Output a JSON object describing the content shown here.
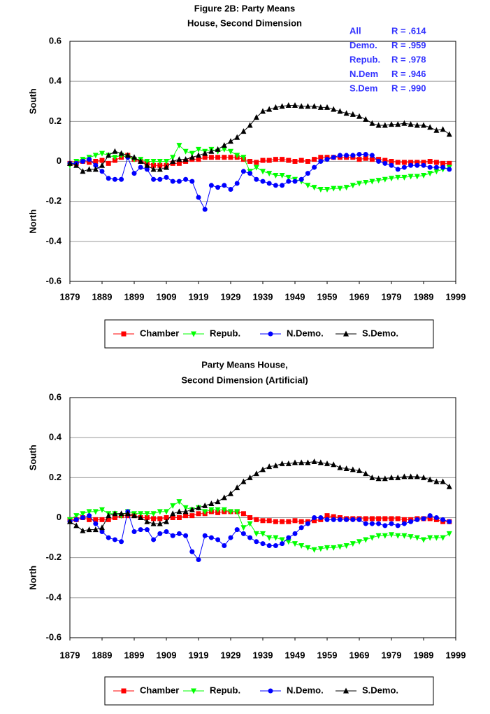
{
  "charts": [
    {
      "chart_data": {
        "type": "line",
        "title": [
          "Figure 2B:  Party Means",
          "House, Second Dimension"
        ],
        "ylabel_top": "South",
        "ylabel_bottom": "North",
        "annotations": [
          {
            "name": "All",
            "text": "R = .614"
          },
          {
            "name": "Demo.",
            "text": "R = .959"
          },
          {
            "name": "Repub.",
            "text": "R = .978"
          },
          {
            "name": "N.Dem",
            "text": "R = .946"
          },
          {
            "name": "S.Dem",
            "text": "R = .990"
          }
        ],
        "annotation_color": "#3333ff",
        "xlim": [
          1879,
          1999
        ],
        "xticks": [
          1879,
          1889,
          1899,
          1909,
          1919,
          1929,
          1939,
          1949,
          1959,
          1969,
          1979,
          1989,
          1999
        ],
        "ylim": [
          -0.6,
          0.6
        ],
        "yticks": [
          {
            "value": -0.6,
            "label": "-0.6"
          },
          {
            "value": -0.4,
            "label": "-0.4"
          },
          {
            "value": -0.2,
            "label": "-0.2"
          },
          0,
          {
            "value": 0.2,
            "label": "0.2"
          },
          {
            "value": 0.4,
            "label": "0.4"
          },
          {
            "value": 0.6,
            "label": "0.6"
          }
        ],
        "grid": true,
        "x": [
          1879,
          1881,
          1883,
          1885,
          1887,
          1889,
          1891,
          1893,
          1895,
          1897,
          1899,
          1901,
          1903,
          1905,
          1907,
          1909,
          1911,
          1913,
          1915,
          1917,
          1919,
          1921,
          1923,
          1925,
          1927,
          1929,
          1931,
          1933,
          1935,
          1937,
          1939,
          1941,
          1943,
          1945,
          1947,
          1949,
          1951,
          1953,
          1955,
          1957,
          1959,
          1961,
          1963,
          1965,
          1967,
          1969,
          1971,
          1973,
          1975,
          1977,
          1979,
          1981,
          1983,
          1985,
          1987,
          1989,
          1991,
          1993,
          1995,
          1997
        ],
        "series": [
          {
            "name": "Chamber",
            "color": "#ff0000",
            "marker": "square",
            "values": [
              -0.01,
              -0.01,
              0,
              -0.005,
              0,
              0.005,
              -0.01,
              0.005,
              0.02,
              0.03,
              0.01,
              0,
              -0.01,
              -0.02,
              -0.02,
              -0.02,
              -0.01,
              -0.01,
              0,
              0.01,
              0.01,
              0.02,
              0.02,
              0.02,
              0.02,
              0.02,
              0.02,
              0.01,
              0,
              -0.005,
              0.005,
              0.005,
              0.01,
              0.01,
              0.005,
              0,
              0.005,
              0,
              0.01,
              0.02,
              0.02,
              0.02,
              0.02,
              0.02,
              0.02,
              0.01,
              0.015,
              0.01,
              0.01,
              0.005,
              0,
              -0.005,
              -0.005,
              -0.005,
              -0.005,
              -0.005,
              0,
              -0.005,
              -0.01,
              -0.01
            ]
          },
          {
            "name": "Repub.",
            "color": "#00ff00",
            "marker": "triangle-down",
            "values": [
              -0.02,
              0,
              0.01,
              0.02,
              0.03,
              0.04,
              0.03,
              0.02,
              0.03,
              0.02,
              0.01,
              0.01,
              0,
              0,
              0,
              0,
              0.02,
              0.08,
              0.05,
              0.04,
              0.06,
              0.05,
              0.06,
              0.05,
              0.06,
              0.05,
              0.03,
              0.02,
              -0.05,
              -0.03,
              -0.05,
              -0.06,
              -0.07,
              -0.07,
              -0.08,
              -0.09,
              -0.1,
              -0.12,
              -0.13,
              -0.14,
              -0.14,
              -0.135,
              -0.135,
              -0.13,
              -0.12,
              -0.11,
              -0.105,
              -0.1,
              -0.095,
              -0.09,
              -0.085,
              -0.08,
              -0.08,
              -0.075,
              -0.075,
              -0.07,
              -0.06,
              -0.05,
              -0.04,
              -0.03
            ]
          },
          {
            "name": "N.Demo.",
            "color": "#0000ff",
            "marker": "circle",
            "values": [
              -0.01,
              -0.01,
              0,
              0.01,
              -0.02,
              -0.05,
              -0.085,
              -0.09,
              -0.09,
              0.02,
              -0.06,
              -0.03,
              -0.04,
              -0.09,
              -0.09,
              -0.08,
              -0.1,
              -0.1,
              -0.09,
              -0.1,
              -0.18,
              -0.24,
              -0.12,
              -0.13,
              -0.12,
              -0.14,
              -0.11,
              -0.05,
              -0.06,
              -0.09,
              -0.1,
              -0.11,
              -0.12,
              -0.12,
              -0.1,
              -0.1,
              -0.09,
              -0.06,
              -0.03,
              0,
              0.01,
              0.02,
              0.03,
              0.03,
              0.03,
              0.035,
              0.035,
              0.03,
              0,
              -0.01,
              -0.02,
              -0.04,
              -0.03,
              -0.02,
              -0.02,
              -0.02,
              -0.03,
              -0.03,
              -0.03,
              -0.04
            ]
          },
          {
            "name": "S.Demo.",
            "color": "#000000",
            "marker": "triangle",
            "values": [
              -0.01,
              -0.02,
              -0.05,
              -0.04,
              -0.04,
              -0.02,
              0.03,
              0.05,
              0.04,
              0.03,
              0.02,
              0,
              -0.02,
              -0.04,
              -0.04,
              -0.03,
              0,
              0.01,
              0.01,
              0.02,
              0.03,
              0.04,
              0.05,
              0.06,
              0.08,
              0.1,
              0.12,
              0.15,
              0.18,
              0.22,
              0.25,
              0.26,
              0.27,
              0.275,
              0.28,
              0.28,
              0.275,
              0.275,
              0.275,
              0.27,
              0.27,
              0.26,
              0.25,
              0.24,
              0.235,
              0.225,
              0.21,
              0.19,
              0.18,
              0.18,
              0.185,
              0.185,
              0.19,
              0.185,
              0.18,
              0.18,
              0.17,
              0.155,
              0.16,
              0.135
            ]
          }
        ]
      }
    },
    {
      "chart_data": {
        "type": "line",
        "title": [
          "Party Means House,",
          "Second Dimension (Artificial)"
        ],
        "ylabel_top": "South",
        "ylabel_bottom": "North",
        "xlim": [
          1879,
          1999
        ],
        "xticks": [
          1879,
          1889,
          1899,
          1909,
          1919,
          1929,
          1939,
          1949,
          1959,
          1969,
          1979,
          1989,
          1999
        ],
        "ylim": [
          -0.6,
          0.6
        ],
        "yticks": [
          {
            "value": -0.6,
            "label": "-0.6"
          },
          {
            "value": -0.4,
            "label": "-0.4"
          },
          {
            "value": -0.2,
            "label": "-0.2"
          },
          0,
          {
            "value": 0.2,
            "label": "0.2"
          },
          {
            "value": 0.4,
            "label": "0.4"
          },
          {
            "value": 0.6,
            "label": "0.6"
          }
        ],
        "grid": true,
        "x": [
          1879,
          1881,
          1883,
          1885,
          1887,
          1889,
          1891,
          1893,
          1895,
          1897,
          1899,
          1901,
          1903,
          1905,
          1907,
          1909,
          1911,
          1913,
          1915,
          1917,
          1919,
          1921,
          1923,
          1925,
          1927,
          1929,
          1931,
          1933,
          1935,
          1937,
          1939,
          1941,
          1943,
          1945,
          1947,
          1949,
          1951,
          1953,
          1955,
          1957,
          1959,
          1961,
          1963,
          1965,
          1967,
          1969,
          1971,
          1973,
          1975,
          1977,
          1979,
          1981,
          1983,
          1985,
          1987,
          1989,
          1991,
          1993,
          1995,
          1997
        ],
        "series": [
          {
            "name": "Chamber",
            "color": "#ff0000",
            "marker": "square",
            "values": [
              -0.01,
              -0.01,
              0,
              -0.01,
              -0.01,
              -0.01,
              -0.01,
              0,
              0.01,
              0.01,
              0.01,
              0,
              0,
              -0.005,
              -0.005,
              0,
              0,
              0,
              0.01,
              0.01,
              0.02,
              0.02,
              0.03,
              0.025,
              0.03,
              0.03,
              0.03,
              0.02,
              0,
              -0.01,
              -0.015,
              -0.015,
              -0.02,
              -0.02,
              -0.02,
              -0.015,
              -0.02,
              -0.02,
              -0.015,
              -0.01,
              0.01,
              0.005,
              0,
              -0.005,
              -0.005,
              -0.005,
              -0.005,
              -0.005,
              -0.005,
              -0.005,
              -0.005,
              -0.005,
              -0.01,
              -0.01,
              -0.005,
              -0.005,
              -0.005,
              -0.01,
              -0.02,
              -0.02
            ]
          },
          {
            "name": "Repub.",
            "color": "#00ff00",
            "marker": "triangle-down",
            "values": [
              -0.01,
              0.01,
              0.02,
              0.03,
              0.03,
              0.04,
              0.02,
              0.02,
              0.01,
              0.03,
              0.02,
              0.02,
              0.02,
              0.02,
              0.03,
              0.03,
              0.06,
              0.08,
              0.05,
              0.04,
              0.05,
              0.03,
              0.04,
              0.04,
              0.04,
              0.03,
              0.03,
              -0.05,
              -0.03,
              -0.08,
              -0.08,
              -0.1,
              -0.1,
              -0.11,
              -0.12,
              -0.13,
              -0.14,
              -0.15,
              -0.16,
              -0.155,
              -0.15,
              -0.15,
              -0.145,
              -0.14,
              -0.13,
              -0.12,
              -0.11,
              -0.1,
              -0.09,
              -0.09,
              -0.085,
              -0.09,
              -0.09,
              -0.095,
              -0.1,
              -0.11,
              -0.1,
              -0.1,
              -0.1,
              -0.08
            ]
          },
          {
            "name": "N.Demo.",
            "color": "#0000ff",
            "marker": "circle",
            "values": [
              -0.02,
              -0.01,
              0,
              0.01,
              -0.03,
              -0.07,
              -0.1,
              -0.11,
              -0.12,
              0.03,
              -0.07,
              -0.06,
              -0.06,
              -0.11,
              -0.08,
              -0.07,
              -0.09,
              -0.08,
              -0.09,
              -0.17,
              -0.21,
              -0.09,
              -0.1,
              -0.11,
              -0.14,
              -0.1,
              -0.06,
              -0.08,
              -0.1,
              -0.12,
              -0.13,
              -0.14,
              -0.14,
              -0.13,
              -0.1,
              -0.08,
              -0.05,
              -0.03,
              0,
              0,
              -0.01,
              -0.01,
              -0.01,
              -0.01,
              -0.01,
              -0.01,
              -0.03,
              -0.03,
              -0.03,
              -0.04,
              -0.03,
              -0.04,
              -0.03,
              -0.02,
              -0.01,
              -0.005,
              0.01,
              0,
              -0.01,
              -0.02
            ]
          },
          {
            "name": "S.Demo.",
            "color": "#000000",
            "marker": "triangle",
            "values": [
              -0.02,
              -0.04,
              -0.065,
              -0.06,
              -0.06,
              -0.05,
              0.01,
              0.02,
              0.02,
              0.02,
              0.01,
              0,
              -0.02,
              -0.03,
              -0.03,
              -0.02,
              0.02,
              0.03,
              0.03,
              0.04,
              0.05,
              0.06,
              0.07,
              0.08,
              0.1,
              0.12,
              0.15,
              0.18,
              0.2,
              0.22,
              0.24,
              0.255,
              0.26,
              0.27,
              0.27,
              0.275,
              0.275,
              0.275,
              0.28,
              0.275,
              0.27,
              0.265,
              0.25,
              0.245,
              0.24,
              0.235,
              0.22,
              0.2,
              0.195,
              0.195,
              0.2,
              0.2,
              0.205,
              0.205,
              0.205,
              0.2,
              0.19,
              0.18,
              0.18,
              0.155
            ]
          }
        ]
      }
    }
  ]
}
